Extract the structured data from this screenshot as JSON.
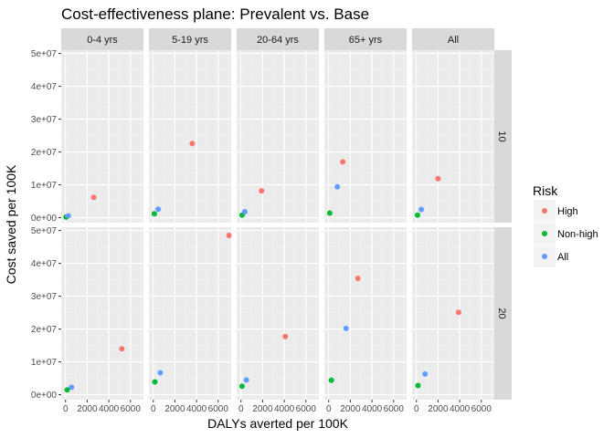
{
  "chart_data": {
    "type": "scatter",
    "title": "Cost-effectiveness plane: Prevalent vs. Base",
    "xlabel": "DALYs averted per 100K",
    "ylabel": "Cost saved per 100K",
    "xlim": [
      -400,
      7200
    ],
    "ylim": [
      -1500000,
      51000000
    ],
    "x_ticks": [
      0,
      2000,
      4000,
      6000
    ],
    "x_tick_labels": [
      "0",
      "2000",
      "4000",
      "6000"
    ],
    "y_ticks": [
      0,
      10000000,
      20000000,
      30000000,
      40000000,
      50000000
    ],
    "y_tick_labels": [
      "0e+00",
      "1e+07",
      "2e+07",
      "3e+07",
      "4e+07",
      "5e+07"
    ],
    "facet_columns": [
      "0-4 yrs",
      "5-19 yrs",
      "20-64 yrs",
      "65+ yrs",
      "All"
    ],
    "facet_rows": [
      "10",
      "20"
    ],
    "grid": true,
    "legend": {
      "title": "Risk",
      "position": "right",
      "items": [
        {
          "name": "High",
          "color": "#F8766D"
        },
        {
          "name": "Non-high",
          "color": "#00BA38"
        },
        {
          "name": "All",
          "color": "#619CFF"
        }
      ]
    },
    "panels": [
      {
        "row": "10",
        "col": "0-4 yrs",
        "points": [
          {
            "risk": "High",
            "x": 2600,
            "y": 6200000
          },
          {
            "risk": "Non-high",
            "x": 50,
            "y": 200000
          },
          {
            "risk": "All",
            "x": 250,
            "y": 600000
          }
        ]
      },
      {
        "row": "10",
        "col": "5-19 yrs",
        "points": [
          {
            "risk": "High",
            "x": 3600,
            "y": 22600000
          },
          {
            "risk": "Non-high",
            "x": 100,
            "y": 1200000
          },
          {
            "risk": "All",
            "x": 450,
            "y": 2600000
          }
        ]
      },
      {
        "row": "10",
        "col": "20-64 yrs",
        "points": [
          {
            "risk": "High",
            "x": 1900,
            "y": 8200000
          },
          {
            "risk": "Non-high",
            "x": 100,
            "y": 800000
          },
          {
            "risk": "All",
            "x": 350,
            "y": 1800000
          }
        ]
      },
      {
        "row": "10",
        "col": "65+ yrs",
        "points": [
          {
            "risk": "High",
            "x": 1300,
            "y": 17000000
          },
          {
            "risk": "Non-high",
            "x": 100,
            "y": 1400000
          },
          {
            "risk": "All",
            "x": 800,
            "y": 9400000
          }
        ]
      },
      {
        "row": "10",
        "col": "All",
        "points": [
          {
            "risk": "High",
            "x": 2000,
            "y": 11900000
          },
          {
            "risk": "Non-high",
            "x": 100,
            "y": 800000
          },
          {
            "risk": "All",
            "x": 450,
            "y": 2500000
          }
        ]
      },
      {
        "row": "20",
        "col": "0-4 yrs",
        "points": [
          {
            "risk": "High",
            "x": 5200,
            "y": 14000000
          },
          {
            "risk": "Non-high",
            "x": 150,
            "y": 1500000
          },
          {
            "risk": "All",
            "x": 550,
            "y": 2300000
          }
        ]
      },
      {
        "row": "20",
        "col": "5-19 yrs",
        "points": [
          {
            "risk": "High",
            "x": 7000,
            "y": 48500000
          },
          {
            "risk": "Non-high",
            "x": 150,
            "y": 3900000
          },
          {
            "risk": "All",
            "x": 650,
            "y": 6700000
          }
        ]
      },
      {
        "row": "20",
        "col": "20-64 yrs",
        "points": [
          {
            "risk": "High",
            "x": 4100,
            "y": 17700000
          },
          {
            "risk": "Non-high",
            "x": 100,
            "y": 2600000
          },
          {
            "risk": "All",
            "x": 500,
            "y": 4500000
          }
        ]
      },
      {
        "row": "20",
        "col": "65+ yrs",
        "points": [
          {
            "risk": "High",
            "x": 2700,
            "y": 35400000
          },
          {
            "risk": "Non-high",
            "x": 250,
            "y": 4400000
          },
          {
            "risk": "All",
            "x": 1600,
            "y": 20200000
          }
        ]
      },
      {
        "row": "20",
        "col": "All",
        "points": [
          {
            "risk": "High",
            "x": 3900,
            "y": 25100000
          },
          {
            "risk": "Non-high",
            "x": 150,
            "y": 2800000
          },
          {
            "risk": "All",
            "x": 800,
            "y": 6300000
          }
        ]
      }
    ]
  }
}
